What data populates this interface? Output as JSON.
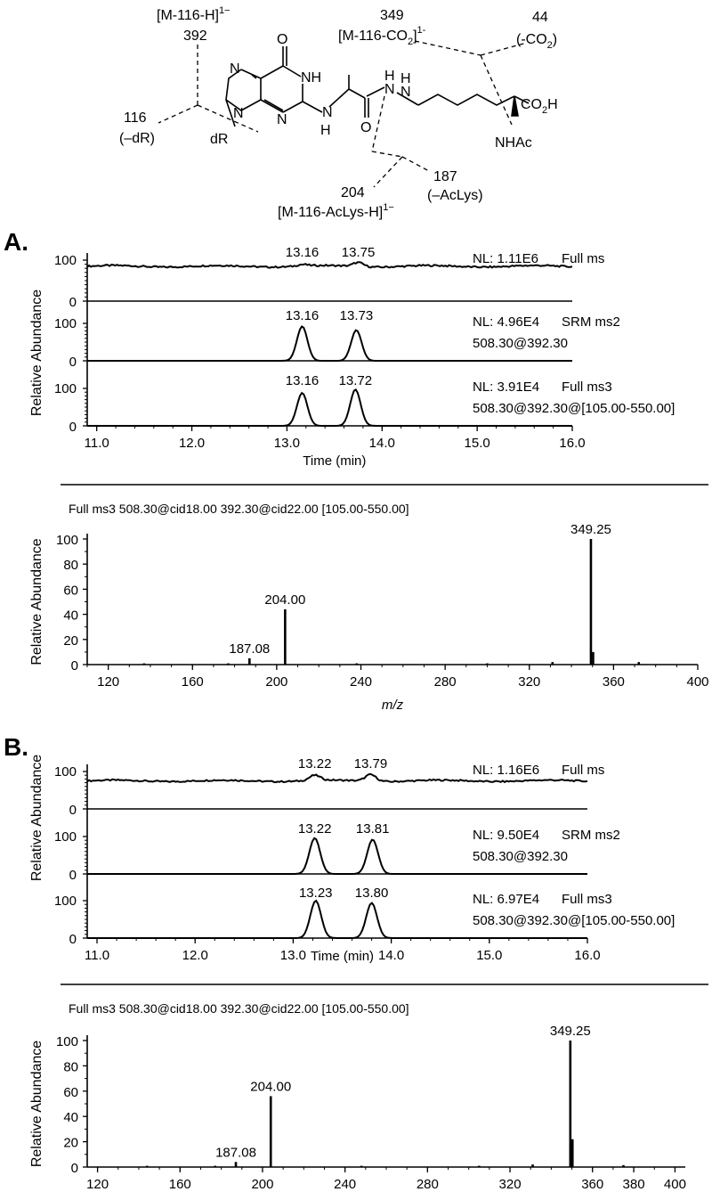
{
  "structure": {
    "labels": {
      "m116": "[M-116-H]",
      "m116_sup": "1−",
      "v392": "392",
      "v349": "349",
      "m116co2_a": "[M-116-CO",
      "m116co2_sub": "2",
      "m116co2_b": "]",
      "m116co2_sup": "1-",
      "v44": "44",
      "co2_a": "(-CO",
      "co2_sub": "2",
      "co2_b": ")",
      "v116": "116",
      "dR_loss": "(–dR)",
      "dR": "dR",
      "O": "O",
      "NH1": "NH",
      "N7": "N",
      "N9": "N",
      "N3": "N",
      "N2": "N",
      "H2": "H",
      "O2": "O",
      "N_amide": "N",
      "H_amide": "H",
      "N_lys": "N",
      "H_lys": "H",
      "co2h_a": "CO",
      "co2h_sub": "2",
      "co2h_b": "H",
      "nhac": "NHAc",
      "v187": "187",
      "acLys": "(–AcLys)",
      "v204": "204",
      "m116aclys": "[M-116-AcLys-H]",
      "m116aclys_sup": "1−"
    }
  },
  "panels": {
    "A": "A.",
    "B": "B."
  },
  "chart_data": [
    {
      "panel": "A",
      "type": "line",
      "subtype": "stacked-chromatograms",
      "xlabel": "Time (min)",
      "ylabel": "Relative Abundance",
      "xlim": [
        10.9,
        16.0
      ],
      "xticks": [
        "11.0",
        "12.0",
        "13.0",
        "14.0",
        "15.0",
        "16.0"
      ],
      "traces": [
        {
          "nl": "NL: 1.11E6",
          "desc1": "Full ms",
          "desc2": "",
          "yticks": [
            "100",
            "0"
          ],
          "baseline": 85,
          "peaks": [
            {
              "x": 13.16,
              "label": "13.16",
              "h": 4
            },
            {
              "x": 13.75,
              "label": "13.75",
              "h": 10
            }
          ],
          "noise": true
        },
        {
          "nl": "NL: 4.96E4",
          "desc1": "SRM ms2",
          "desc2": "508.30@392.30",
          "yticks": [
            "100",
            "0"
          ],
          "baseline": 0,
          "peaks": [
            {
              "x": 13.16,
              "label": "13.16",
              "h": 92
            },
            {
              "x": 13.73,
              "label": "13.73",
              "h": 82
            }
          ],
          "noise": false
        },
        {
          "nl": "NL: 3.91E4",
          "desc1": "Full ms3",
          "desc2": "508.30@392.30@[105.00-550.00]",
          "yticks": [
            "100",
            "0"
          ],
          "baseline": 0,
          "peaks": [
            {
              "x": 13.16,
              "label": "13.16",
              "h": 88
            },
            {
              "x": 13.72,
              "label": "13.72",
              "h": 97
            }
          ],
          "noise": false
        }
      ]
    },
    {
      "panel": "A",
      "type": "bar",
      "subtype": "mass-spectrum",
      "title": "Full ms3 508.30@cid18.00 392.30@cid22.00 [105.00-550.00]",
      "xlabel": "m/z",
      "ylabel": "Relative Abundance",
      "xlim": [
        110,
        400
      ],
      "ylim": [
        0,
        100
      ],
      "xticks": [
        120,
        160,
        200,
        240,
        280,
        320,
        360,
        400
      ],
      "yticks": [
        0,
        20,
        40,
        60,
        80,
        100
      ],
      "peaks": [
        {
          "x": 187.08,
          "y": 5,
          "label": "187.08"
        },
        {
          "x": 204.0,
          "y": 44,
          "label": "204.00"
        },
        {
          "x": 349.25,
          "y": 100,
          "label": "349.25"
        },
        {
          "x": 350.3,
          "y": 10,
          "label": ""
        },
        {
          "x": 331,
          "y": 2,
          "label": ""
        },
        {
          "x": 372,
          "y": 2,
          "label": ""
        },
        {
          "x": 137,
          "y": 1,
          "label": ""
        },
        {
          "x": 177,
          "y": 1,
          "label": ""
        },
        {
          "x": 238,
          "y": 1,
          "label": ""
        },
        {
          "x": 300,
          "y": 1,
          "label": ""
        }
      ]
    },
    {
      "panel": "B",
      "type": "line",
      "subtype": "stacked-chromatograms",
      "xlabel": "Time (min)",
      "ylabel": "Relative Abundance",
      "xlim": [
        10.9,
        16.0
      ],
      "xticks": [
        "11.0",
        "12.0",
        "13.0",
        "14.0",
        "15.0",
        "16.0"
      ],
      "traces": [
        {
          "nl": "NL: 1.16E6",
          "desc1": "Full ms",
          "desc2": "",
          "yticks": [
            "100",
            "0"
          ],
          "baseline": 75,
          "peaks": [
            {
              "x": 13.22,
              "label": "13.22",
              "h": 14
            },
            {
              "x": 13.79,
              "label": "13.79",
              "h": 18
            }
          ],
          "noise": true
        },
        {
          "nl": "NL: 9.50E4",
          "desc1": "SRM ms2",
          "desc2": "508.30@392.30",
          "yticks": [
            "100",
            "0"
          ],
          "baseline": 0,
          "peaks": [
            {
              "x": 13.22,
              "label": "13.22",
              "h": 96
            },
            {
              "x": 13.81,
              "label": "13.81",
              "h": 92
            }
          ],
          "noise": false
        },
        {
          "nl": "NL: 6.97E4",
          "desc1": "Full ms3",
          "desc2": "508.30@392.30@[105.00-550.00]",
          "yticks": [
            "100",
            "0"
          ],
          "baseline": 0,
          "peaks": [
            {
              "x": 13.23,
              "label": "13.23",
              "h": 100
            },
            {
              "x": 13.8,
              "label": "13.80",
              "h": 94
            }
          ],
          "noise": false
        }
      ]
    },
    {
      "panel": "B",
      "type": "bar",
      "subtype": "mass-spectrum",
      "title": "Full ms3 508.30@cid18.00 392.30@cid22.00 [105.00-550.00]",
      "xlabel": "m/z",
      "ylabel": "Relative Abundance",
      "xlim": [
        115,
        405
      ],
      "ylim": [
        0,
        100
      ],
      "xticks": [
        120,
        160,
        200,
        240,
        280,
        320,
        360,
        380,
        400
      ],
      "yticks": [
        0,
        20,
        40,
        60,
        80,
        100
      ],
      "peaks": [
        {
          "x": 187.08,
          "y": 4,
          "label": "187.08"
        },
        {
          "x": 204.0,
          "y": 56,
          "label": "204.00"
        },
        {
          "x": 349.25,
          "y": 100,
          "label": "349.25"
        },
        {
          "x": 350.3,
          "y": 22,
          "label": ""
        },
        {
          "x": 331,
          "y": 2,
          "label": ""
        },
        {
          "x": 375,
          "y": 1.5,
          "label": ""
        },
        {
          "x": 144,
          "y": 1,
          "label": ""
        },
        {
          "x": 177,
          "y": 1,
          "label": ""
        },
        {
          "x": 248,
          "y": 1,
          "label": ""
        },
        {
          "x": 305,
          "y": 1,
          "label": ""
        }
      ]
    }
  ]
}
